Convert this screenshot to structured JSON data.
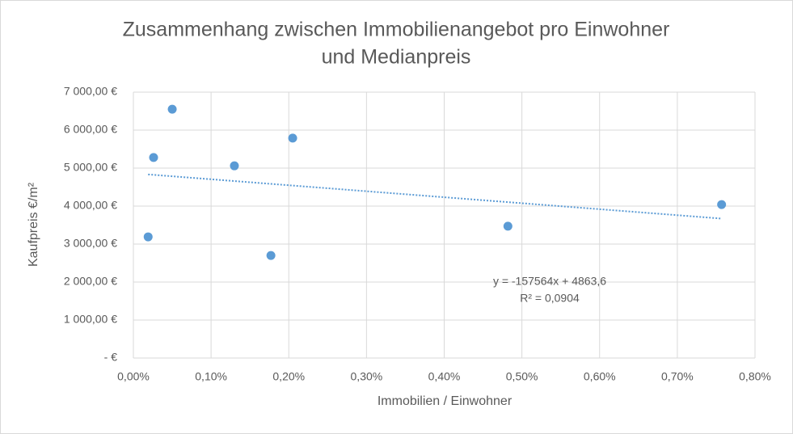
{
  "chart_data": {
    "type": "scatter",
    "title": [
      "Zusammenhang zwischen Immobilienangebot pro Einwohner",
      "und Medianpreis"
    ],
    "x_label": "Immobilien / Einwohner",
    "y_label": "Kaufpreis €/m²",
    "series": [
      {
        "color": "#5b9bd5",
        "x": [
          0.00019,
          0.00026,
          0.0005,
          0.0013,
          0.00177,
          0.00205,
          0.00482,
          0.00757
        ],
        "values": [
          3190,
          5280,
          6550,
          5060,
          2700,
          5790,
          3470,
          4040
        ]
      }
    ],
    "trendline": {
      "slope": -157564,
      "intercept": 4863.6,
      "color": "#5b9bd5",
      "equation_label": "y = -157564x + 4863,6",
      "r2_label": "R² = 0,0904"
    },
    "xlim": [
      0,
      0.008
    ],
    "xticks": [
      {
        "value": 0,
        "label": "0,00%"
      },
      {
        "value": 0.001,
        "label": "0,10%"
      },
      {
        "value": 0.002,
        "label": "0,20%"
      },
      {
        "value": 0.003,
        "label": "0,30%"
      },
      {
        "value": 0.004,
        "label": "0,40%"
      },
      {
        "value": 0.005,
        "label": "0,50%"
      },
      {
        "value": 0.006,
        "label": "0,60%"
      },
      {
        "value": 0.007,
        "label": "0,70%"
      },
      {
        "value": 0.008,
        "label": "0,80%"
      }
    ],
    "ylim": [
      0,
      7000
    ],
    "yticks": [
      {
        "value": 0,
        "label": "-  €"
      },
      {
        "value": 1000,
        "label": "1 000,00 €"
      },
      {
        "value": 2000,
        "label": "2 000,00 €"
      },
      {
        "value": 3000,
        "label": "3 000,00 €"
      },
      {
        "value": 4000,
        "label": "4 000,00 €"
      },
      {
        "value": 5000,
        "label": "5 000,00 €"
      },
      {
        "value": 6000,
        "label": "6 000,00 €"
      },
      {
        "value": 7000,
        "label": "7 000,00 €"
      }
    ],
    "grid": true
  }
}
